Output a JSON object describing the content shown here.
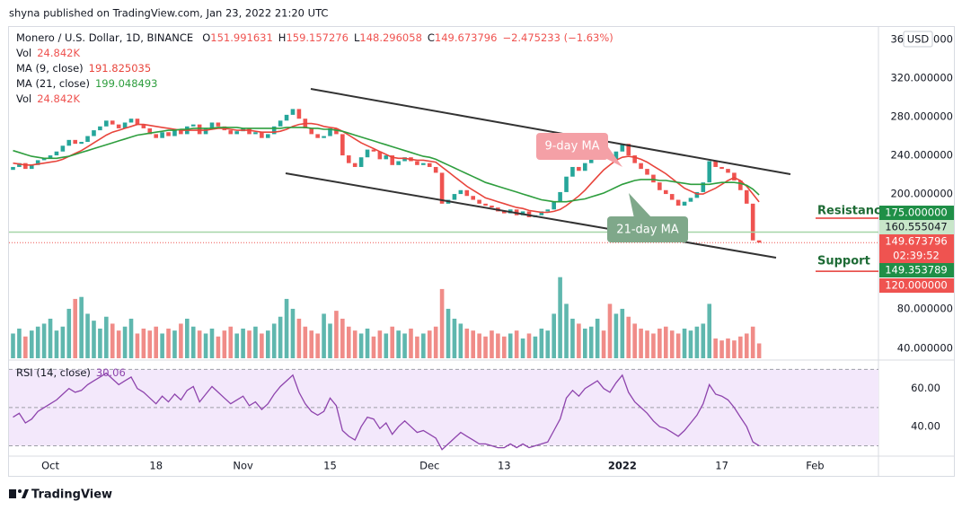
{
  "header": {
    "published": "shyna published on TradingView.com, Jan 23, 2022 21:20 UTC",
    "brand": "TradingView"
  },
  "legend": {
    "symbol": "Monero / U.S. Dollar, 1D, BINANCE",
    "ohlc": [
      {
        "key": "O",
        "value": "151.991631"
      },
      {
        "key": "H",
        "value": "159.157276"
      },
      {
        "key": "L",
        "value": "148.296058"
      },
      {
        "key": "C",
        "value": "149.673796"
      }
    ],
    "change": "−2.475233 (−1.63%)",
    "rows": [
      {
        "name": "Vol",
        "value": "24.842K"
      },
      {
        "name": "MA (9, close)",
        "value": "191.825035"
      },
      {
        "name": "MA (21, close)",
        "value": "199.048493"
      },
      {
        "name": "Vol",
        "value": "24.842K"
      }
    ]
  },
  "chart_data": [
    {
      "type": "candlestick",
      "currency": "USD",
      "up_color": "#26a69a",
      "down_color": "#ef5350",
      "open": [
        225,
        228,
        232,
        226,
        230,
        235,
        237,
        240,
        244,
        250,
        256,
        252,
        254,
        260,
        266,
        270,
        276,
        272,
        268,
        274,
        278,
        272,
        268,
        262,
        258,
        264,
        260,
        266,
        262,
        270,
        272,
        262,
        268,
        274,
        270,
        266,
        262,
        265,
        268,
        262,
        264,
        258,
        262,
        270,
        276,
        282,
        288,
        278,
        268,
        262,
        258,
        260,
        268,
        262,
        240,
        232,
        228,
        238,
        246,
        244,
        236,
        240,
        230,
        234,
        238,
        234,
        230,
        232,
        228,
        222,
        190,
        194,
        200,
        204,
        198,
        194,
        190,
        188,
        186,
        182,
        180,
        184,
        178,
        182,
        176,
        178,
        182,
        184,
        192,
        202,
        218,
        228,
        224,
        232,
        238,
        246,
        240,
        236,
        244,
        252,
        240,
        232,
        226,
        220,
        212,
        204,
        200,
        194,
        188,
        192,
        196,
        202,
        212,
        234,
        228,
        226,
        222,
        214,
        204,
        190,
        151.991631
      ],
      "close": [
        228,
        232,
        226,
        230,
        235,
        237,
        240,
        244,
        250,
        256,
        252,
        254,
        260,
        266,
        270,
        276,
        272,
        268,
        274,
        278,
        272,
        268,
        262,
        258,
        264,
        260,
        266,
        262,
        270,
        272,
        262,
        268,
        274,
        270,
        266,
        262,
        265,
        268,
        262,
        264,
        258,
        262,
        270,
        276,
        282,
        288,
        278,
        268,
        262,
        258,
        260,
        268,
        262,
        240,
        232,
        228,
        238,
        246,
        244,
        236,
        240,
        230,
        234,
        238,
        234,
        230,
        232,
        228,
        222,
        190,
        194,
        200,
        204,
        198,
        194,
        190,
        188,
        186,
        182,
        180,
        184,
        178,
        182,
        176,
        178,
        182,
        184,
        192,
        202,
        218,
        228,
        224,
        232,
        238,
        246,
        240,
        236,
        244,
        252,
        240,
        232,
        226,
        220,
        212,
        204,
        200,
        194,
        188,
        192,
        196,
        202,
        212,
        234,
        228,
        226,
        222,
        214,
        204,
        190,
        151.991631,
        149.673796
      ],
      "series": [
        {
          "name": "MA (9, close)",
          "color": "#e8453c",
          "values": [
            232,
            231,
            230,
            230,
            231,
            232,
            233,
            234,
            236,
            239,
            242,
            245,
            249,
            253,
            257,
            261,
            264,
            266,
            268,
            270,
            272,
            272,
            271,
            270,
            269,
            268,
            267,
            266,
            266,
            266,
            266,
            266,
            267,
            268,
            268,
            267,
            266,
            266,
            266,
            265,
            264,
            264,
            264,
            265,
            267,
            270,
            272,
            273,
            273,
            272,
            270,
            269,
            268,
            265,
            261,
            257,
            253,
            250,
            247,
            244,
            241,
            238,
            237,
            237,
            236,
            235,
            235,
            234,
            233,
            228,
            223,
            218,
            213,
            208,
            204,
            200,
            196,
            194,
            192,
            190,
            188,
            186,
            185,
            183,
            182,
            181,
            181,
            182,
            184,
            188,
            193,
            198,
            204,
            211,
            218,
            225,
            230,
            235,
            238,
            239,
            238,
            236,
            233,
            229,
            225,
            221,
            216,
            211,
            206,
            203,
            200,
            200,
            203,
            206,
            210,
            214,
            217,
            214,
            208,
            200,
            191.825035
          ]
        },
        {
          "name": "MA (21, close)",
          "color": "#2e9e3e",
          "values": [
            245,
            243,
            241,
            239,
            238,
            237,
            237,
            237,
            238,
            239,
            241,
            243,
            245,
            247,
            249,
            251,
            253,
            255,
            257,
            259,
            261,
            262,
            263,
            264,
            265,
            266,
            266,
            267,
            267,
            268,
            268,
            268,
            268,
            269,
            269,
            269,
            269,
            268,
            268,
            268,
            268,
            268,
            268,
            268,
            269,
            269,
            269,
            269,
            268,
            268,
            267,
            267,
            266,
            265,
            263,
            261,
            259,
            257,
            255,
            253,
            251,
            249,
            247,
            245,
            243,
            241,
            239,
            238,
            236,
            233,
            230,
            227,
            224,
            221,
            218,
            215,
            212,
            210,
            208,
            206,
            204,
            202,
            200,
            198,
            196,
            194,
            193,
            192,
            192,
            192,
            193,
            194,
            195,
            197,
            199,
            201,
            204,
            207,
            210,
            212,
            214,
            215,
            215,
            215,
            214,
            214,
            213,
            212,
            211,
            210,
            210,
            210,
            210,
            211,
            212,
            212,
            212,
            211,
            209,
            205,
            199.048493
          ]
        }
      ],
      "xlim": [
        -0.65,
        139.2
      ],
      "ylim": [
        29,
        373
      ],
      "xticks": [
        {
          "value": 6,
          "label": "Oct"
        },
        {
          "value": 23,
          "label": "18"
        },
        {
          "value": 37,
          "label": "Nov"
        },
        {
          "value": 51,
          "label": "15"
        },
        {
          "value": 67,
          "label": "Dec"
        },
        {
          "value": 79,
          "label": "13"
        },
        {
          "value": 98,
          "label": "2022"
        },
        {
          "value": 114,
          "label": "17"
        },
        {
          "value": 129,
          "label": "Feb"
        }
      ],
      "yticks": [
        {
          "value": 200,
          "label": "200.000000"
        },
        {
          "value": 240,
          "label": "240.000000"
        },
        {
          "value": 280,
          "label": "280.000000"
        },
        {
          "value": 320,
          "label": "320.000000"
        },
        {
          "value": 360,
          "label": "360.000000"
        }
      ],
      "annotations": [
        "9-day MA",
        "21-day MA"
      ],
      "resistance_label": "Resistance",
      "support_label": "Support",
      "price_labels": [
        "175.000000",
        "160.555047",
        "149.673796",
        "02:39:52",
        "149.353789",
        "120.000000"
      ]
    },
    {
      "type": "bar",
      "up_color": "#5fb7ae",
      "down_color": "#f08c88",
      "values": [
        55,
        60,
        52,
        58,
        62,
        65,
        70,
        58,
        62,
        80,
        90,
        92,
        75,
        68,
        60,
        72,
        65,
        58,
        62,
        70,
        55,
        60,
        58,
        62,
        55,
        60,
        58,
        65,
        70,
        62,
        58,
        55,
        60,
        52,
        58,
        62,
        55,
        60,
        58,
        62,
        55,
        58,
        65,
        72,
        90,
        80,
        70,
        62,
        58,
        55,
        75,
        65,
        78,
        70,
        62,
        58,
        55,
        60,
        52,
        58,
        55,
        62,
        58,
        55,
        60,
        52,
        55,
        58,
        62,
        100,
        80,
        70,
        65,
        60,
        58,
        55,
        52,
        58,
        55,
        52,
        55,
        58,
        50,
        55,
        52,
        60,
        58,
        75,
        112,
        85,
        70,
        65,
        60,
        62,
        70,
        58,
        85,
        75,
        80,
        72,
        65,
        60,
        58,
        55,
        60,
        62,
        58,
        55,
        60,
        58,
        62,
        65,
        85,
        50,
        48,
        50,
        48,
        52,
        55,
        62,
        45
      ],
      "ylim": [
        30,
        365
      ],
      "yticks": [
        {
          "value": 40,
          "label": "40.000000"
        },
        {
          "value": 80,
          "label": "80.000000"
        }
      ]
    },
    {
      "type": "line",
      "title": "RSI (14, close)",
      "color": "#8e44ad",
      "band": [
        30,
        70
      ],
      "midline": 50,
      "values": [
        45,
        47,
        42,
        44,
        48,
        50,
        52,
        54,
        57,
        60,
        58,
        59,
        62,
        64,
        66,
        68,
        65,
        62,
        64,
        66,
        60,
        58,
        55,
        52,
        56,
        53,
        57,
        54,
        59,
        61,
        53,
        57,
        61,
        58,
        55,
        52,
        54,
        56,
        51,
        53,
        49,
        52,
        57,
        61,
        64,
        67,
        58,
        52,
        48,
        46,
        48,
        55,
        51,
        38,
        35,
        33,
        40,
        45,
        44,
        39,
        42,
        36,
        40,
        43,
        40,
        37,
        38,
        36,
        34,
        28,
        31,
        34,
        37,
        35,
        33,
        31,
        31,
        30,
        29,
        29,
        31,
        29,
        31,
        29,
        30,
        31,
        32,
        38,
        44,
        55,
        59,
        56,
        60,
        62,
        64,
        60,
        58,
        63,
        67,
        58,
        53,
        50,
        47,
        43,
        40,
        39,
        37,
        35,
        38,
        42,
        46,
        52,
        62,
        57,
        56,
        54,
        50,
        45,
        40,
        32,
        30.06
      ],
      "ylim": [
        26,
        73
      ],
      "yticks": [
        {
          "value": 40,
          "label": "40.00"
        },
        {
          "value": 60,
          "label": "60.00"
        }
      ]
    }
  ]
}
